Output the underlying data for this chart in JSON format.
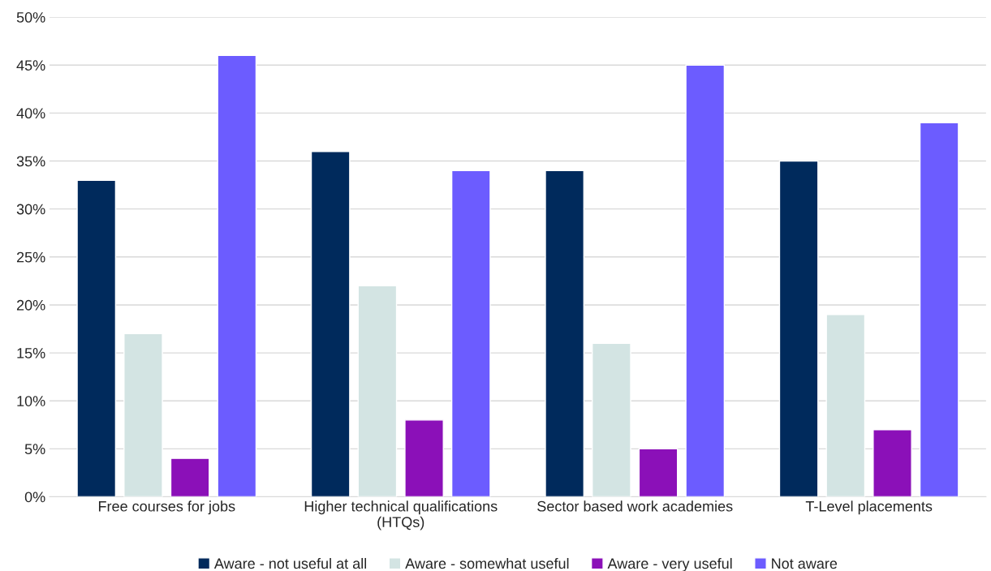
{
  "chart_data": {
    "type": "bar",
    "categories": [
      "Free courses for jobs",
      "Higher technical qualifications (HTQs)",
      "Sector based work academies",
      "T-Level placements"
    ],
    "series": [
      {
        "name": "Aware - not useful at all",
        "color": "#002a5c",
        "values": [
          33,
          36,
          34,
          35
        ]
      },
      {
        "name": "Aware - somewhat useful",
        "color": "#d3e4e3",
        "values": [
          17,
          22,
          16,
          19
        ]
      },
      {
        "name": "Aware - very useful",
        "color": "#8b10b8",
        "values": [
          4,
          8,
          5,
          7
        ]
      },
      {
        "name": "Not aware",
        "color": "#6c5cff",
        "values": [
          46,
          34,
          45,
          39
        ]
      }
    ],
    "ylim": [
      0,
      50
    ],
    "yticks": [
      {
        "value": 0,
        "label": "0%"
      },
      {
        "value": 5,
        "label": "5%"
      },
      {
        "value": 10,
        "label": "10%"
      },
      {
        "value": 15,
        "label": "15%"
      },
      {
        "value": 20,
        "label": "20%"
      },
      {
        "value": 25,
        "label": "25%"
      },
      {
        "value": 30,
        "label": "30%"
      },
      {
        "value": 35,
        "label": "35%"
      },
      {
        "value": 40,
        "label": "40%"
      },
      {
        "value": 45,
        "label": "45%"
      },
      {
        "value": 50,
        "label": "50%"
      }
    ],
    "grid": "y",
    "legend": "bottom"
  }
}
